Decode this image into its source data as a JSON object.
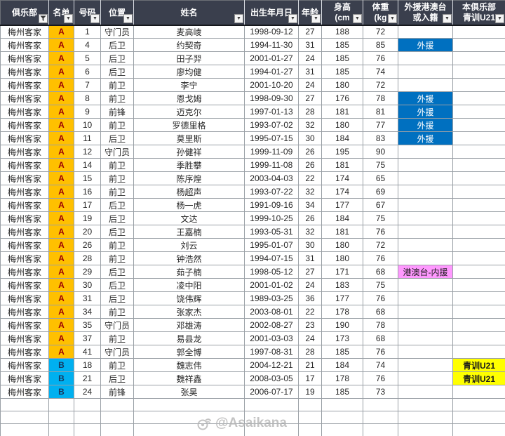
{
  "header": {
    "columns": [
      {
        "key": "club",
        "label": "俱乐部",
        "filter": "funnel"
      },
      {
        "key": "roster",
        "label": "名单",
        "filter": "arrow"
      },
      {
        "key": "number",
        "label": "号码",
        "filter": "arrow"
      },
      {
        "key": "position",
        "label": "位置",
        "filter": "arrow"
      },
      {
        "key": "name",
        "label": "姓名",
        "filter": "arrow"
      },
      {
        "key": "dob",
        "label": "出生年月日",
        "filter": "arrow"
      },
      {
        "key": "age",
        "label": "年龄",
        "filter": "arrow"
      },
      {
        "key": "height",
        "label": "身高\n(cm",
        "filter": "arrow"
      },
      {
        "key": "weight",
        "label": "体重\n(kg",
        "filter": "arrow"
      },
      {
        "key": "special",
        "label": "外援港澳台\n或入籍",
        "filter": "arrow"
      },
      {
        "key": "youth",
        "label": "本俱乐部\n青训U21",
        "filter": "arrow"
      }
    ]
  },
  "rows": [
    [
      "梅州客家",
      "A",
      "1",
      "守门员",
      "麦高崚",
      "1998-09-12",
      "27",
      "188",
      "72",
      "",
      ""
    ],
    [
      "梅州客家",
      "A",
      "4",
      "后卫",
      "约契奇",
      "1994-11-30",
      "31",
      "185",
      "85",
      "外援",
      ""
    ],
    [
      "梅州客家",
      "A",
      "5",
      "后卫",
      "田子羿",
      "2001-01-27",
      "24",
      "185",
      "76",
      "",
      ""
    ],
    [
      "梅州客家",
      "A",
      "6",
      "后卫",
      "廖均健",
      "1994-01-27",
      "31",
      "185",
      "74",
      "",
      ""
    ],
    [
      "梅州客家",
      "A",
      "7",
      "前卫",
      "李宁",
      "2001-10-20",
      "24",
      "180",
      "72",
      "",
      ""
    ],
    [
      "梅州客家",
      "A",
      "8",
      "前卫",
      "恩戈姆",
      "1998-09-30",
      "27",
      "176",
      "78",
      "外援",
      ""
    ],
    [
      "梅州客家",
      "A",
      "9",
      "前锋",
      "迈克尔",
      "1997-01-13",
      "28",
      "181",
      "81",
      "外援",
      ""
    ],
    [
      "梅州客家",
      "A",
      "10",
      "前卫",
      "罗德里格",
      "1993-07-02",
      "32",
      "180",
      "77",
      "外援",
      ""
    ],
    [
      "梅州客家",
      "A",
      "11",
      "后卫",
      "莫里斯",
      "1995-07-15",
      "30",
      "184",
      "83",
      "外援",
      ""
    ],
    [
      "梅州客家",
      "A",
      "12",
      "守门员",
      "孙健祥",
      "1999-11-09",
      "26",
      "195",
      "90",
      "",
      ""
    ],
    [
      "梅州客家",
      "A",
      "14",
      "前卫",
      "季胜攀",
      "1999-11-08",
      "26",
      "181",
      "75",
      "",
      ""
    ],
    [
      "梅州客家",
      "A",
      "15",
      "前卫",
      "陈序煌",
      "2003-04-03",
      "22",
      "174",
      "65",
      "",
      ""
    ],
    [
      "梅州客家",
      "A",
      "16",
      "前卫",
      "杨超声",
      "1993-07-22",
      "32",
      "174",
      "69",
      "",
      ""
    ],
    [
      "梅州客家",
      "A",
      "17",
      "后卫",
      "杨一虎",
      "1991-09-16",
      "34",
      "177",
      "67",
      "",
      ""
    ],
    [
      "梅州客家",
      "A",
      "19",
      "后卫",
      "文达",
      "1999-10-25",
      "26",
      "184",
      "75",
      "",
      ""
    ],
    [
      "梅州客家",
      "A",
      "20",
      "后卫",
      "王嘉楠",
      "1993-05-31",
      "32",
      "181",
      "76",
      "",
      ""
    ],
    [
      "梅州客家",
      "A",
      "26",
      "前卫",
      "刘云",
      "1995-01-07",
      "30",
      "180",
      "72",
      "",
      ""
    ],
    [
      "梅州客家",
      "A",
      "28",
      "前卫",
      "钟浩然",
      "1994-07-15",
      "31",
      "180",
      "76",
      "",
      ""
    ],
    [
      "梅州客家",
      "A",
      "29",
      "后卫",
      "茹子楠",
      "1998-05-12",
      "27",
      "171",
      "68",
      "港澳台-内援",
      ""
    ],
    [
      "梅州客家",
      "A",
      "30",
      "后卫",
      "凌中阳",
      "2001-01-02",
      "24",
      "183",
      "75",
      "",
      ""
    ],
    [
      "梅州客家",
      "A",
      "31",
      "后卫",
      "饶伟辉",
      "1989-03-25",
      "36",
      "177",
      "76",
      "",
      ""
    ],
    [
      "梅州客家",
      "A",
      "34",
      "前卫",
      "张家杰",
      "2003-08-01",
      "22",
      "178",
      "68",
      "",
      ""
    ],
    [
      "梅州客家",
      "A",
      "35",
      "守门员",
      "邓雄涛",
      "2002-08-27",
      "23",
      "190",
      "78",
      "",
      ""
    ],
    [
      "梅州客家",
      "A",
      "37",
      "前卫",
      "易县龙",
      "2001-03-03",
      "24",
      "173",
      "68",
      "",
      ""
    ],
    [
      "梅州客家",
      "A",
      "41",
      "守门员",
      "郭全博",
      "1997-08-31",
      "28",
      "185",
      "76",
      "",
      ""
    ],
    [
      "梅州客家",
      "B",
      "18",
      "前卫",
      "魏志伟",
      "2004-12-21",
      "21",
      "184",
      "74",
      "",
      "青训U21"
    ],
    [
      "梅州客家",
      "B",
      "21",
      "后卫",
      "魏祥鑫",
      "2008-03-05",
      "17",
      "178",
      "76",
      "",
      "青训U21"
    ],
    [
      "梅州客家",
      "B",
      "24",
      "前锋",
      "张昊",
      "2006-07-17",
      "19",
      "185",
      "73",
      "",
      ""
    ]
  ],
  "empty_row_count": 3,
  "special_values": {
    "foreign": "外援",
    "hmt": "港澳台-内援",
    "youth": "青训U21"
  },
  "watermark": {
    "handle": "@Asaikana"
  },
  "colors": {
    "header_bg": "#3A3F4D",
    "roster_a_bg": "#FFC000",
    "roster_a_text": "#9C0006",
    "roster_b_bg": "#00B0F0",
    "roster_b_text": "#17375E",
    "foreign_bg": "#0070C0",
    "foreign_text": "#FFFFFF",
    "hmt_bg": "#FF99FF",
    "hmt_text": "#1A1A1A",
    "youth_bg": "#FFFF00",
    "youth_text": "#1A1A1A"
  }
}
